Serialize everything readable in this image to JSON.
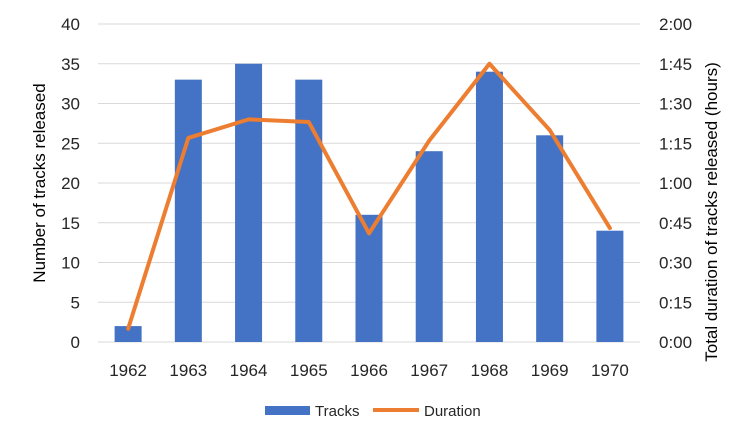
{
  "chart_data": {
    "type": "bar",
    "categories": [
      "1962",
      "1963",
      "1964",
      "1965",
      "1966",
      "1967",
      "1968",
      "1969",
      "1970"
    ],
    "series": [
      {
        "name": "Tracks",
        "type": "bar",
        "axis": "left",
        "color": "#4472C4",
        "values": [
          2,
          33,
          35,
          33,
          16,
          24,
          34,
          26,
          14
        ]
      },
      {
        "name": "Duration",
        "type": "line",
        "axis": "right",
        "color": "#ED7D31",
        "values_minutes": [
          5,
          77,
          84,
          83,
          41,
          76,
          105,
          80,
          43
        ]
      }
    ],
    "ylabel": "Number of tracks released",
    "ylabel_right": "Total duration of tracks released (hours)",
    "ylim": [
      0,
      40
    ],
    "yticks": [
      "0",
      "5",
      "10",
      "15",
      "20",
      "25",
      "30",
      "35",
      "40"
    ],
    "ylim_right_minutes": [
      0,
      120
    ],
    "yticks_right": [
      "0:00",
      "0:15",
      "0:30",
      "0:45",
      "1:00",
      "1:15",
      "1:30",
      "1:45",
      "2:00"
    ],
    "grid": true,
    "legend": "bottom"
  }
}
